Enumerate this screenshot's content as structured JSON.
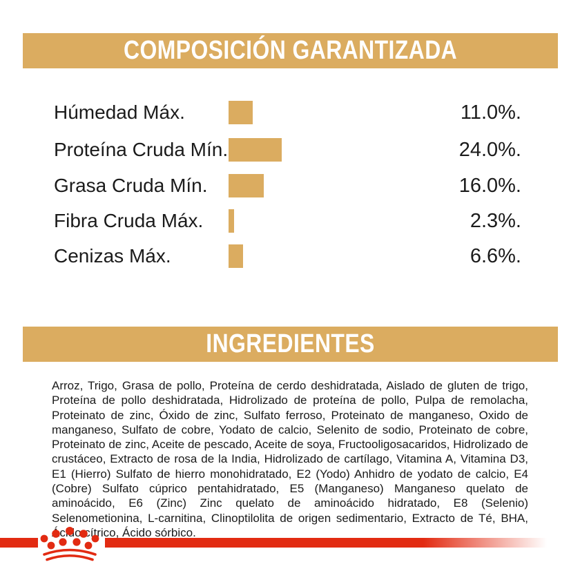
{
  "colors": {
    "gold": "#DBAC60",
    "red": "#E22B12",
    "text": "#1b1b1b",
    "banner_text": "#ffffff"
  },
  "composition": {
    "title": "COMPOSICIÓN GARANTIZADA",
    "rows": [
      {
        "label": "Húmedad Máx.",
        "value_label": "11.0%."
      },
      {
        "label": "Proteína Cruda Mín.",
        "value_label": "24.0%."
      },
      {
        "label": "Grasa Cruda Mín.",
        "value_label": "16.0%."
      },
      {
        "label": "Fibra Cruda Máx.",
        "value_label": "2.3%."
      },
      {
        "label": "Cenizas Máx.",
        "value_label": "6.6%."
      }
    ]
  },
  "chart_data": {
    "type": "bar",
    "orientation": "horizontal",
    "title": "COMPOSICIÓN GARANTIZADA",
    "categories": [
      "Húmedad Máx.",
      "Proteína Cruda Mín.",
      "Grasa Cruda Mín.",
      "Fibra Cruda Máx.",
      "Cenizas Máx."
    ],
    "values": [
      11.0,
      24.0,
      16.0,
      2.3,
      6.6
    ],
    "value_labels": [
      "11.0%.",
      "24.0%.",
      "16.0%.",
      "2.3%.",
      "6.6%."
    ],
    "unit": "%",
    "bar_color": "#DBAC60",
    "axes": "none",
    "grid": false,
    "legend": false,
    "value_label_position": "right-aligned-column"
  },
  "ingredients": {
    "title": "INGREDIENTES",
    "text": "Arroz, Trigo, Grasa de pollo, Proteína de cerdo deshidratada, Aislado de gluten de trigo, Proteína de pollo deshidratada, Hidrolizado de proteína de pollo, Pulpa de remolacha, Proteinato de zinc, Óxido de zinc, Sulfato ferroso, Proteinato de manganeso, Oxido de manganeso, Sulfato de cobre, Yodato de calcio, Selenito de sodio, Proteinato de cobre, Proteinato de zinc, Aceite de pescado, Aceite de soya, Fructooligosacaridos, Hidrolizado de crustáceo, Extracto de rosa de la India, Hidrolizado de cartílago, Vitamina A, Vitamina D3, E1 (Hierro) Sulfato de hierro monohidratado, E2 (Yodo) Anhidro de yodato de calcio, E4 (Cobre) Sulfato cúprico pentahidratado, E5 (Manganeso) Manganeso quelato de aminoácido, E6 (Zinc) Zinc quelato de aminoácido hidratado, E8 (Selenio) Selenometionina, L-carnitina, Clinoptilolita de origen sedimentario, Extracto de Té, BHA, Ácido cítrico, Ácido sórbico."
  },
  "footer": {
    "brand_icon": "royal-canin-crown-icon"
  }
}
